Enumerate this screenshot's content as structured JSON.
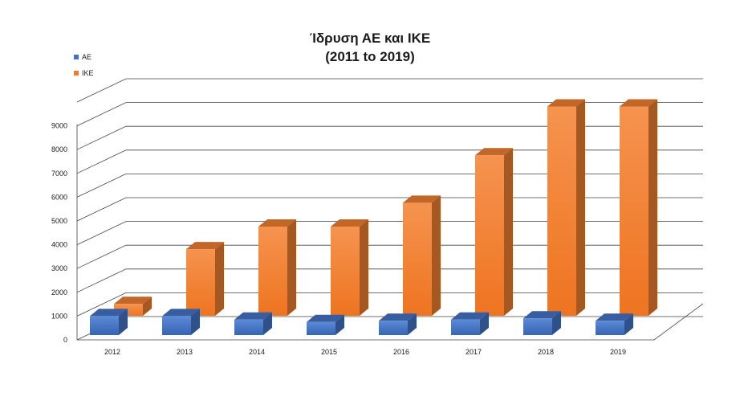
{
  "chart_data": {
    "type": "bar",
    "title": [
      "Ίδρυση ΑΕ και ΙΚΕ",
      "(2011 to 2019)"
    ],
    "categories": [
      "2012",
      "2013",
      "2014",
      "2015",
      "2016",
      "2017",
      "2018",
      "2019"
    ],
    "series": [
      {
        "name": "ΑΕ",
        "color": "#4472C4",
        "values": [
          800,
          800,
          650,
          550,
          600,
          650,
          700,
          600
        ]
      },
      {
        "name": "ΙΚΕ",
        "color": "#ED7D31",
        "values": [
          500,
          2800,
          3750,
          3750,
          4750,
          6750,
          8800,
          8800
        ]
      }
    ],
    "y_ticks": [
      "0",
      "1000",
      "2000",
      "3000",
      "4000",
      "5000",
      "6000",
      "7000",
      "8000",
      "9000"
    ],
    "ylim": [
      0,
      10000
    ],
    "legend_position": "top-left",
    "grid": true,
    "style": "3d-column"
  }
}
